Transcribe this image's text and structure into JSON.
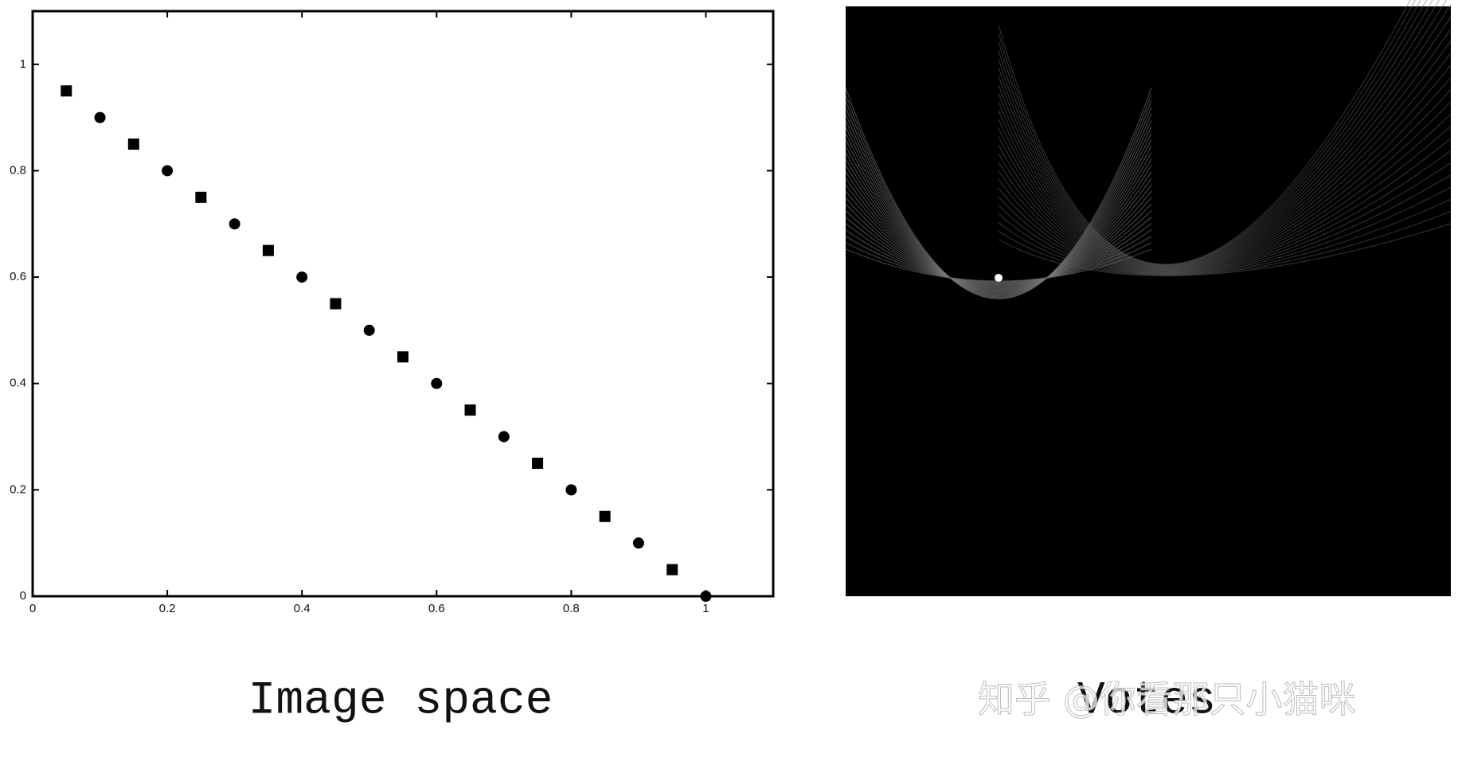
{
  "chart_data": {
    "type": "scatter",
    "x": [
      0.05,
      0.1,
      0.15,
      0.2,
      0.25,
      0.3,
      0.35,
      0.4,
      0.45,
      0.5,
      0.55,
      0.6,
      0.65,
      0.7,
      0.75,
      0.8,
      0.85,
      0.9,
      0.95,
      1
    ],
    "values": [
      0.95,
      0.9,
      0.85,
      0.8,
      0.75,
      0.7,
      0.65,
      0.6,
      0.55,
      0.5,
      0.45,
      0.4,
      0.35,
      0.3,
      0.25,
      0.2,
      0.15,
      0.1,
      0.05,
      0
    ],
    "color": "#000000",
    "xlim": [
      0,
      1.1
    ],
    "ylim": [
      0,
      1.1
    ],
    "xticks": [
      0,
      0.2,
      0.4,
      0.6,
      0.8,
      1
    ],
    "yticks": [
      0,
      0.2,
      0.4,
      0.6,
      0.8,
      1
    ],
    "caption": "Image space"
  },
  "votes_panel": {
    "caption": "Votes"
  },
  "watermark": "知乎 @你看那只小猫咪"
}
